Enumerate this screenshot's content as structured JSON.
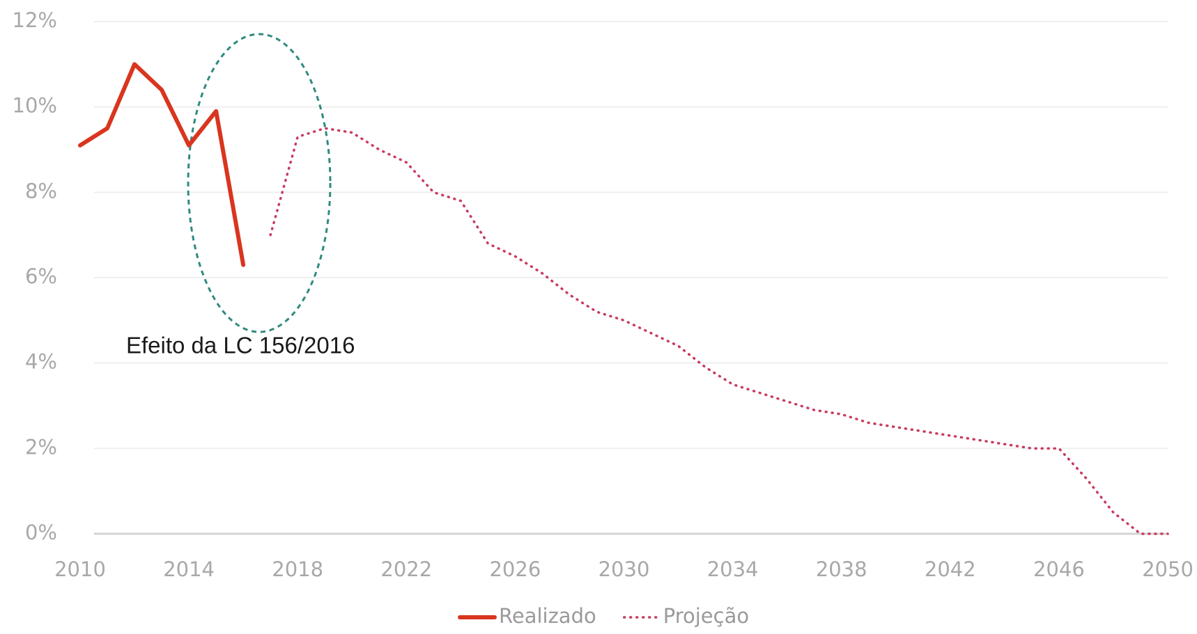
{
  "chart_data": {
    "type": "line",
    "x": [
      2010,
      2011,
      2012,
      2013,
      2014,
      2015,
      2016,
      2017,
      2018,
      2019,
      2020,
      2021,
      2022,
      2023,
      2024,
      2025,
      2026,
      2027,
      2028,
      2029,
      2030,
      2031,
      2032,
      2033,
      2034,
      2035,
      2036,
      2037,
      2038,
      2039,
      2040,
      2041,
      2042,
      2043,
      2044,
      2045,
      2046,
      2047,
      2048,
      2049,
      2050
    ],
    "series": [
      {
        "name": "Realizado",
        "color": "#d9351f",
        "style": "solid",
        "values": [
          9.1,
          9.5,
          11.0,
          10.4,
          9.1,
          9.9,
          6.3,
          null,
          null,
          null,
          null,
          null,
          null,
          null,
          null,
          null,
          null,
          null,
          null,
          null,
          null,
          null,
          null,
          null,
          null,
          null,
          null,
          null,
          null,
          null,
          null,
          null,
          null,
          null,
          null,
          null,
          null,
          null,
          null,
          null,
          null
        ]
      },
      {
        "name": "Projeção",
        "color": "#c93a5e",
        "style": "dotted",
        "values": [
          null,
          null,
          null,
          null,
          null,
          null,
          null,
          7.0,
          9.3,
          9.5,
          9.4,
          9.0,
          8.7,
          8.0,
          7.8,
          6.8,
          6.5,
          6.1,
          5.6,
          5.2,
          5.0,
          4.7,
          4.4,
          3.9,
          3.5,
          3.3,
          3.1,
          2.9,
          2.8,
          2.6,
          2.5,
          2.4,
          2.3,
          2.2,
          2.1,
          2.0,
          2.0,
          1.3,
          0.5,
          0.0,
          0.0
        ]
      }
    ],
    "xlim": [
      2010,
      2050
    ],
    "xticks": [
      2010,
      2014,
      2018,
      2022,
      2026,
      2030,
      2034,
      2038,
      2042,
      2046,
      2050
    ],
    "ylim": [
      0,
      12
    ],
    "yticks": [
      {
        "value": 0,
        "label": "0%"
      },
      {
        "value": 2,
        "label": "2%"
      },
      {
        "value": 4,
        "label": "4%"
      },
      {
        "value": 6,
        "label": "6%"
      },
      {
        "value": 8,
        "label": "8%"
      },
      {
        "value": 10,
        "label": "10%"
      },
      {
        "value": 12,
        "label": "12%"
      }
    ],
    "grid": true,
    "legend": "bottom",
    "annotation": "Efeito da LC 156/2016"
  }
}
